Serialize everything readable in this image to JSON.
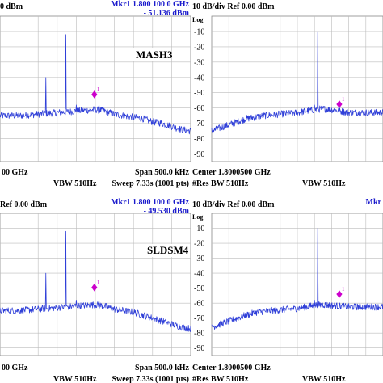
{
  "chart_data": [
    {
      "type": "line",
      "header_left": "0 dBm",
      "header_right": [
        "Mkr1 1.800 100 0 GHz",
        "- 51.136 dBm"
      ],
      "scale_label": "",
      "label": "MASH3",
      "footer": [
        "00 GHz",
        "VBW 510Hz",
        "Span 500.0 kHz",
        "Sweep 7.33s (1001 pts)"
      ],
      "ylim": [
        -95,
        0
      ],
      "ytick_values": [],
      "ytick_labels": [],
      "x_divisions": 10,
      "xlim": [
        0,
        1
      ],
      "spectrum": {
        "x": [
          0,
          0.05,
          0.1,
          0.15,
          0.2,
          0.25,
          0.3,
          0.35,
          0.4,
          0.45,
          0.5,
          0.55,
          0.6,
          0.65,
          0.7,
          0.75,
          0.8,
          0.85,
          0.9,
          0.95,
          1
        ],
        "y": [
          -65,
          -65,
          -65,
          -64.5,
          -64,
          -63.5,
          -63,
          -62.5,
          -62,
          -61.5,
          -61,
          -62,
          -64,
          -65,
          -66,
          -67,
          -69,
          -70,
          -72,
          -74,
          -75
        ]
      },
      "spurs": [
        {
          "x": 0.24,
          "y": -40
        },
        {
          "x": 0.345,
          "y": -12
        },
        {
          "x": 0.4,
          "y": -58
        },
        {
          "x": 0.52,
          "y": -57
        }
      ],
      "marker": {
        "label": "1",
        "x": 0.495,
        "y": -51.136
      }
    },
    {
      "type": "line",
      "header_left": "10 dB/div   Ref 0.00 dBm",
      "header_right": [],
      "scale_label": "Log",
      "label": "",
      "footer": [
        "Center 1.8000500 GHz",
        "VBW 510Hz",
        "#Res BW 510Hz",
        ""
      ],
      "ylim": [
        -95,
        0
      ],
      "ytick_values": [
        -10,
        -20,
        -30,
        -40,
        -50,
        -60,
        -70,
        -80,
        -90
      ],
      "ytick_labels": [
        "-10",
        "-20",
        "-30",
        "-40",
        "-50",
        "-60",
        "-70",
        "-80",
        "-90"
      ],
      "x_divisions": 10,
      "xlim": [
        0,
        1
      ],
      "spectrum": {
        "x": [
          0,
          0.05,
          0.1,
          0.15,
          0.2,
          0.25,
          0.3,
          0.35,
          0.4,
          0.45,
          0.5,
          0.55,
          0.6,
          0.65,
          0.7,
          0.75,
          0.8,
          0.85,
          0.9,
          0.95,
          1
        ],
        "y": [
          -75,
          -73,
          -71,
          -69,
          -67,
          -66,
          -65,
          -64.5,
          -64,
          -63.5,
          -63,
          -62,
          -61,
          -60.5,
          -61,
          -62,
          -63,
          -63,
          -63,
          -63,
          -63
        ]
      },
      "spurs": [
        {
          "x": 0.62,
          "y": -10
        },
        {
          "x": 0.6,
          "y": -58
        }
      ],
      "marker": {
        "label": "1",
        "x": 0.745,
        "y": -57.5
      }
    },
    {
      "type": "line",
      "header_left": "Ref 0.00 dBm",
      "header_right": [
        "Mkr1 1.800 100 0 GHz",
        "- 49.530 dBm"
      ],
      "scale_label": "",
      "label": "SLDSM4",
      "footer": [
        "00 GHz",
        "VBW 510Hz",
        "Span 500.0 kHz",
        "Sweep 7.33s (1001 pts)"
      ],
      "ylim": [
        -95,
        0
      ],
      "ytick_values": [],
      "ytick_labels": [],
      "x_divisions": 10,
      "xlim": [
        0,
        1
      ],
      "spectrum": {
        "x": [
          0,
          0.05,
          0.1,
          0.15,
          0.2,
          0.25,
          0.3,
          0.35,
          0.4,
          0.45,
          0.5,
          0.55,
          0.6,
          0.65,
          0.7,
          0.75,
          0.8,
          0.85,
          0.9,
          0.95,
          1
        ],
        "y": [
          -65,
          -65,
          -65,
          -64.5,
          -64,
          -63.5,
          -63,
          -62.5,
          -62,
          -61.5,
          -61,
          -62,
          -64,
          -65,
          -66,
          -68,
          -70,
          -72,
          -74,
          -76,
          -77
        ]
      },
      "spurs": [
        {
          "x": 0.24,
          "y": -40
        },
        {
          "x": 0.345,
          "y": -12
        },
        {
          "x": 0.4,
          "y": -58
        },
        {
          "x": 0.52,
          "y": -57
        }
      ],
      "marker": {
        "label": "1",
        "x": 0.495,
        "y": -49.53
      }
    },
    {
      "type": "line",
      "header_left": "10 dB/div   Ref 0.00 dBm",
      "header_right": [
        "Mkr"
      ],
      "scale_label": "Log",
      "label": "",
      "footer": [
        "Center 1.8000500 GHz",
        "VBW 510Hz",
        "#Res BW 510Hz",
        ""
      ],
      "ylim": [
        -95,
        0
      ],
      "ytick_values": [
        -10,
        -20,
        -30,
        -40,
        -50,
        -60,
        -70,
        -80,
        -90
      ],
      "ytick_labels": [
        "-10",
        "-20",
        "-30",
        "-40",
        "-50",
        "-60",
        "-70",
        "-80",
        "-90"
      ],
      "x_divisions": 10,
      "xlim": [
        0,
        1
      ],
      "spectrum": {
        "x": [
          0,
          0.05,
          0.1,
          0.15,
          0.2,
          0.25,
          0.3,
          0.35,
          0.4,
          0.45,
          0.5,
          0.55,
          0.6,
          0.65,
          0.7,
          0.75,
          0.8,
          0.85,
          0.9,
          0.95,
          1
        ],
        "y": [
          -76,
          -74,
          -72,
          -70,
          -68,
          -66.5,
          -65.5,
          -65,
          -64.5,
          -64,
          -63.5,
          -62.5,
          -61.5,
          -61,
          -61.5,
          -62,
          -62.5,
          -62.5,
          -62.5,
          -62.5,
          -62.5
        ]
      },
      "spurs": [
        {
          "x": 0.62,
          "y": -10
        },
        {
          "x": 0.6,
          "y": -58
        }
      ],
      "marker": {
        "label": "1",
        "x": 0.745,
        "y": -54
      }
    }
  ]
}
